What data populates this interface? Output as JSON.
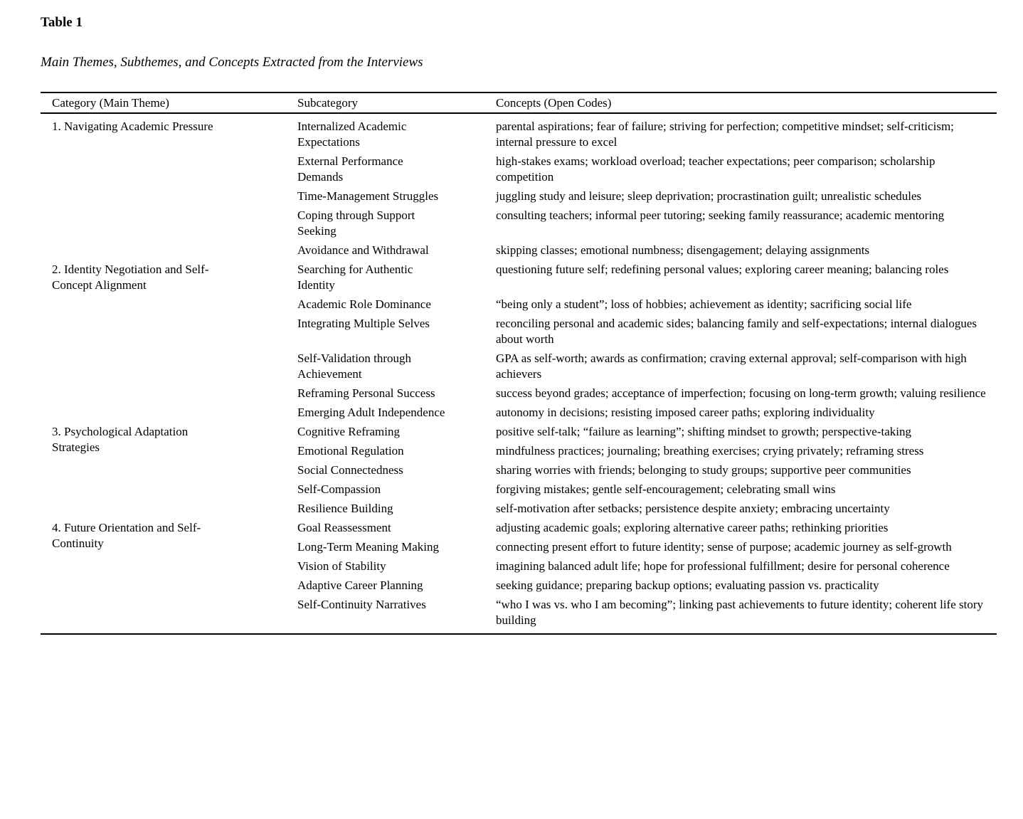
{
  "document": {
    "table_label": "Table 1",
    "caption": "Main Themes, Subthemes, and Concepts Extracted from the Interviews"
  },
  "table": {
    "headers": [
      "Category (Main Theme)",
      "Subcategory",
      "Concepts (Open Codes)"
    ],
    "categories": [
      {
        "name": "1. Navigating Academic Pressure",
        "rows": [
          {
            "subcategory": "Internalized Academic Expectations",
            "concepts": "parental aspirations; fear of failure; striving for perfection; competitive mindset; self-criticism; internal pressure to excel"
          },
          {
            "subcategory": "External Performance Demands",
            "concepts": "high-stakes exams; workload overload; teacher expectations; peer comparison; scholarship competition"
          },
          {
            "subcategory": "Time-Management Struggles",
            "concepts": "juggling study and leisure; sleep deprivation; procrastination guilt; unrealistic schedules"
          },
          {
            "subcategory": "Coping through Support Seeking",
            "concepts": "consulting teachers; informal peer tutoring; seeking family reassurance; academic mentoring"
          },
          {
            "subcategory": "Avoidance and Withdrawal",
            "concepts": "skipping classes; emotional numbness; disengagement; delaying assignments"
          }
        ]
      },
      {
        "name": "2. Identity Negotiation and Self-Concept Alignment",
        "rows": [
          {
            "subcategory": "Searching for Authentic Identity",
            "concepts": "questioning future self; redefining personal values; exploring career meaning; balancing roles"
          },
          {
            "subcategory": "Academic Role Dominance",
            "concepts": "“being only a student”; loss of hobbies; achievement as identity; sacrificing social life"
          },
          {
            "subcategory": "Integrating Multiple Selves",
            "concepts": "reconciling personal and academic sides; balancing family and self-expectations; internal dialogues about worth"
          },
          {
            "subcategory": "Self-Validation through Achievement",
            "concepts": "GPA as self-worth; awards as confirmation; craving external approval; self-comparison with high achievers"
          },
          {
            "subcategory": "Reframing Personal Success",
            "concepts": "success beyond grades; acceptance of imperfection; focusing on long-term growth; valuing resilience"
          },
          {
            "subcategory": "Emerging Adult Independence",
            "concepts": "autonomy in decisions; resisting imposed career paths; exploring individuality"
          }
        ]
      },
      {
        "name": "3. Psychological Adaptation Strategies",
        "rows": [
          {
            "subcategory": "Cognitive Reframing",
            "concepts": "positive self-talk; “failure as learning”; shifting mindset to growth; perspective-taking"
          },
          {
            "subcategory": "Emotional Regulation",
            "concepts": "mindfulness practices; journaling; breathing exercises; crying privately; reframing stress"
          },
          {
            "subcategory": "Social Connectedness",
            "concepts": "sharing worries with friends; belonging to study groups; supportive peer communities"
          },
          {
            "subcategory": "Self-Compassion",
            "concepts": "forgiving mistakes; gentle self-encouragement; celebrating small wins"
          },
          {
            "subcategory": "Resilience Building",
            "concepts": "self-motivation after setbacks; persistence despite anxiety; embracing uncertainty"
          }
        ]
      },
      {
        "name": "4. Future Orientation and Self-Continuity",
        "rows": [
          {
            "subcategory": "Goal Reassessment",
            "concepts": "adjusting academic goals; exploring alternative career paths; rethinking priorities"
          },
          {
            "subcategory": "Long-Term Meaning Making",
            "concepts": "connecting present effort to future identity; sense of purpose; academic journey as self-growth"
          },
          {
            "subcategory": "Vision of Stability",
            "concepts": "imagining balanced adult life; hope for professional fulfillment; desire for personal coherence"
          },
          {
            "subcategory": "Adaptive Career Planning",
            "concepts": "seeking guidance; preparing backup options; evaluating passion vs. practicality"
          },
          {
            "subcategory": "Self-Continuity Narratives",
            "concepts": "“who I was vs. who I am becoming”; linking past achievements to future identity; coherent life story building"
          }
        ]
      }
    ]
  }
}
